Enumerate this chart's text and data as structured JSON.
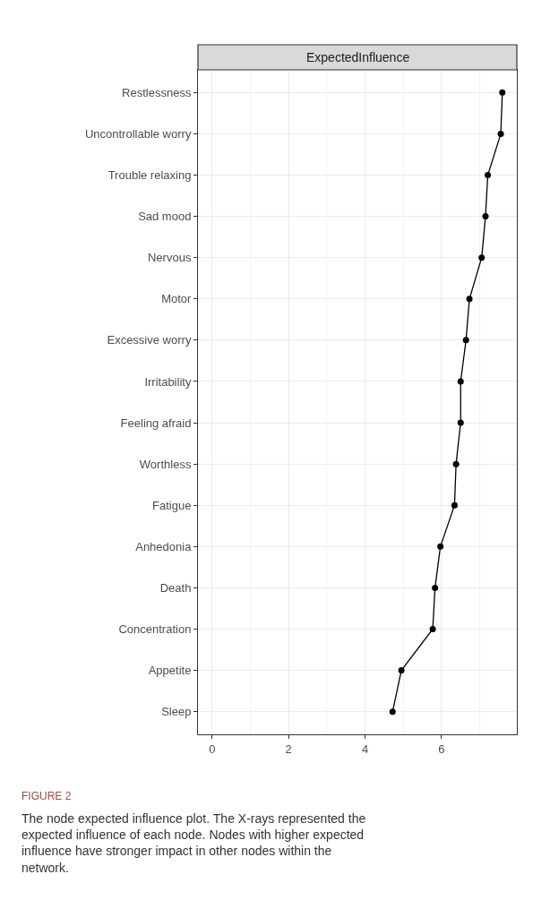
{
  "chart_data": {
    "type": "line",
    "title": "ExpectedInfluence",
    "categories": [
      "Restlessness",
      "Uncontrollable worry",
      "Trouble relaxing",
      "Sad mood",
      "Nervous",
      "Motor",
      "Excessive worry",
      "Irritability",
      "Feeling afraid",
      "Worthless",
      "Fatigue",
      "Anhedonia",
      "Death",
      "Concentration",
      "Appetite",
      "Sleep"
    ],
    "orientation": "horizontal",
    "series": [
      {
        "color": "#000000",
        "values": [
          7.59,
          7.55,
          7.21,
          7.15,
          7.05,
          6.73,
          6.64,
          6.5,
          6.5,
          6.38,
          6.34,
          5.97,
          5.83,
          5.77,
          4.95,
          4.72
        ]
      }
    ],
    "xlim": [
      -0.37,
      7.97
    ],
    "xticks": [
      0,
      2,
      4,
      6
    ],
    "grid": true,
    "marker": "circle",
    "line_style": "solid",
    "annotations": [
      "FIGURE 2",
      "The node expected influence plot. The X-rays represented the expected influence of each node. Nodes with higher expected influence have stronger impact in other nodes within the network."
    ]
  }
}
